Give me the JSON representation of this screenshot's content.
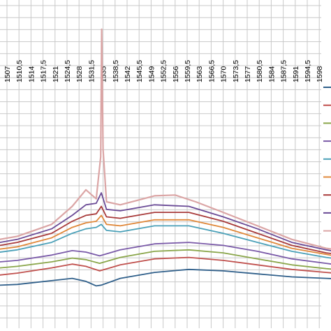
{
  "chart_data": {
    "type": "line",
    "x_tick_labels": [
      "1507",
      "1510,5",
      "1514",
      "1517,5",
      "1521",
      "1524,5",
      "1528",
      "1531,5",
      "1535",
      "1538,5",
      "1542",
      "1545,5",
      "1549",
      "1552,5",
      "1556",
      "1559,5",
      "1563",
      "1566,5",
      "1570",
      "1573,5",
      "1577",
      "1580,5",
      "1584",
      "1587,5",
      "1591",
      "1594,5",
      "1598"
    ],
    "x_range": [
      1500,
      1605
    ],
    "title": "",
    "xlabel": "",
    "ylabel": "",
    "grid": true,
    "legend_position": "right",
    "series": [
      {
        "color": "#2f5f8a",
        "values": [
          [
            1500,
            0.04
          ],
          [
            1510,
            0.05
          ],
          [
            1520,
            0.075
          ],
          [
            1526,
            0.09
          ],
          [
            1530,
            0.07
          ],
          [
            1533,
            0.04
          ],
          [
            1534.5,
            0.045
          ],
          [
            1540,
            0.09
          ],
          [
            1550,
            0.13
          ],
          [
            1560,
            0.15
          ],
          [
            1570,
            0.14
          ],
          [
            1580,
            0.12
          ],
          [
            1590,
            0.1
          ],
          [
            1600,
            0.09
          ],
          [
            1605,
            0.085
          ]
        ]
      },
      {
        "color": "#c0504d",
        "values": [
          [
            1500,
            0.1
          ],
          [
            1510,
            0.125
          ],
          [
            1520,
            0.16
          ],
          [
            1526,
            0.185
          ],
          [
            1530,
            0.17
          ],
          [
            1534,
            0.14
          ],
          [
            1540,
            0.18
          ],
          [
            1550,
            0.22
          ],
          [
            1560,
            0.23
          ],
          [
            1570,
            0.21
          ],
          [
            1580,
            0.18
          ],
          [
            1590,
            0.15
          ],
          [
            1600,
            0.13
          ],
          [
            1605,
            0.12
          ]
        ]
      },
      {
        "color": "#8aa64a",
        "values": [
          [
            1500,
            0.15
          ],
          [
            1510,
            0.17
          ],
          [
            1520,
            0.2
          ],
          [
            1526,
            0.225
          ],
          [
            1530,
            0.215
          ],
          [
            1534,
            0.19
          ],
          [
            1540,
            0.23
          ],
          [
            1550,
            0.27
          ],
          [
            1560,
            0.28
          ],
          [
            1570,
            0.26
          ],
          [
            1580,
            0.22
          ],
          [
            1590,
            0.18
          ],
          [
            1600,
            0.155
          ],
          [
            1605,
            0.145
          ]
        ]
      },
      {
        "color": "#7a5aa8",
        "values": [
          [
            1500,
            0.19
          ],
          [
            1510,
            0.21
          ],
          [
            1520,
            0.245
          ],
          [
            1526,
            0.275
          ],
          [
            1530,
            0.265
          ],
          [
            1534,
            0.24
          ],
          [
            1540,
            0.28
          ],
          [
            1550,
            0.32
          ],
          [
            1560,
            0.33
          ],
          [
            1570,
            0.31
          ],
          [
            1580,
            0.27
          ],
          [
            1590,
            0.22
          ],
          [
            1600,
            0.19
          ],
          [
            1605,
            0.175
          ]
        ]
      },
      {
        "color": "#4aa0b8",
        "values": [
          [
            1500,
            0.25
          ],
          [
            1510,
            0.28
          ],
          [
            1520,
            0.33
          ],
          [
            1526,
            0.39
          ],
          [
            1530,
            0.42
          ],
          [
            1533,
            0.43
          ],
          [
            1534.5,
            0.45
          ],
          [
            1536,
            0.41
          ],
          [
            1540,
            0.4
          ],
          [
            1550,
            0.44
          ],
          [
            1560,
            0.44
          ],
          [
            1570,
            0.39
          ],
          [
            1580,
            0.33
          ],
          [
            1590,
            0.27
          ],
          [
            1600,
            0.23
          ],
          [
            1605,
            0.215
          ]
        ]
      },
      {
        "color": "#e0883a",
        "values": [
          [
            1500,
            0.27
          ],
          [
            1510,
            0.3
          ],
          [
            1520,
            0.36
          ],
          [
            1526,
            0.43
          ],
          [
            1530,
            0.46
          ],
          [
            1533,
            0.47
          ],
          [
            1534.5,
            0.51
          ],
          [
            1536,
            0.45
          ],
          [
            1540,
            0.44
          ],
          [
            1550,
            0.48
          ],
          [
            1560,
            0.48
          ],
          [
            1570,
            0.43
          ],
          [
            1580,
            0.36
          ],
          [
            1590,
            0.29
          ],
          [
            1600,
            0.25
          ],
          [
            1605,
            0.23
          ]
        ]
      },
      {
        "color": "#a83a3a",
        "values": [
          [
            1500,
            0.29
          ],
          [
            1510,
            0.33
          ],
          [
            1520,
            0.39
          ],
          [
            1526,
            0.47
          ],
          [
            1530,
            0.51
          ],
          [
            1533,
            0.52
          ],
          [
            1534.5,
            0.57
          ],
          [
            1536,
            0.5
          ],
          [
            1540,
            0.49
          ],
          [
            1550,
            0.53
          ],
          [
            1560,
            0.53
          ],
          [
            1570,
            0.47
          ],
          [
            1580,
            0.39
          ],
          [
            1590,
            0.31
          ],
          [
            1600,
            0.26
          ],
          [
            1605,
            0.245
          ]
        ]
      },
      {
        "color": "#6a4a96",
        "values": [
          [
            1500,
            0.31
          ],
          [
            1510,
            0.35
          ],
          [
            1520,
            0.42
          ],
          [
            1526,
            0.51
          ],
          [
            1530,
            0.58
          ],
          [
            1533,
            0.59
          ],
          [
            1534.5,
            0.66
          ],
          [
            1536,
            0.55
          ],
          [
            1540,
            0.54
          ],
          [
            1550,
            0.58
          ],
          [
            1560,
            0.57
          ],
          [
            1570,
            0.5
          ],
          [
            1580,
            0.42
          ],
          [
            1590,
            0.33
          ],
          [
            1600,
            0.28
          ],
          [
            1605,
            0.26
          ]
        ]
      },
      {
        "color": "#dba5a5",
        "values": [
          [
            1500,
            0.33
          ],
          [
            1510,
            0.37
          ],
          [
            1520,
            0.45
          ],
          [
            1526,
            0.57
          ],
          [
            1530,
            0.68
          ],
          [
            1533,
            0.62
          ],
          [
            1534.3,
            0.9
          ],
          [
            1534.6,
            1.75
          ],
          [
            1535,
            0.95
          ],
          [
            1536,
            0.6
          ],
          [
            1540,
            0.58
          ],
          [
            1550,
            0.64
          ],
          [
            1556,
            0.645
          ],
          [
            1562,
            0.6
          ],
          [
            1570,
            0.53
          ],
          [
            1580,
            0.44
          ],
          [
            1590,
            0.35
          ],
          [
            1600,
            0.29
          ],
          [
            1605,
            0.275
          ]
        ]
      }
    ]
  }
}
